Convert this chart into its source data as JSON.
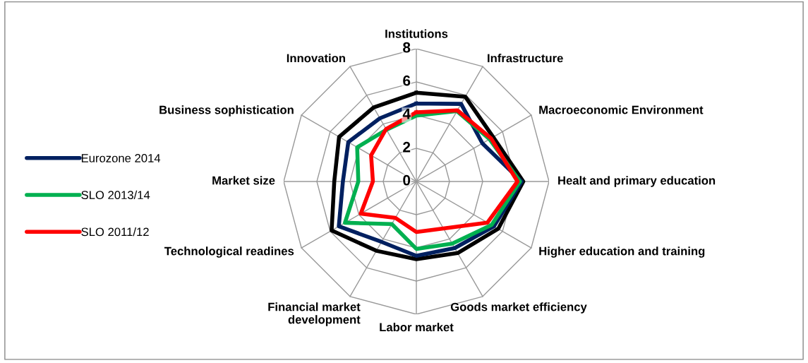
{
  "chart_data": {
    "type": "radar",
    "categories": [
      "Institutions",
      "Infrastructure",
      "Macroeconomic Environment",
      "Healt and primary education",
      "Higher education and training",
      "Goods market efficiency",
      "Labor market",
      "Financial market development",
      "Technological readines",
      "Market size",
      "Business sophistication",
      "Innovation"
    ],
    "series": [
      {
        "color": "#000000",
        "values": [
          5.35,
          5.9,
          5.35,
          6.45,
          5.7,
          4.98,
          4.68,
          4.82,
          5.9,
          4.95,
          5.38,
          5.15
        ]
      },
      {
        "name": "Eurozone 2014",
        "color": "#002060",
        "values": [
          4.7,
          5.4,
          4.6,
          6.35,
          5.4,
          4.63,
          4.48,
          4.2,
          5.4,
          4.43,
          4.74,
          4.4
        ]
      },
      {
        "name": "SLO 2013/14",
        "color": "#00b050",
        "values": [
          3.97,
          4.9,
          5.1,
          6.25,
          5.24,
          4.32,
          4.06,
          2.96,
          4.97,
          3.5,
          4.12,
          3.6
        ]
      },
      {
        "name": "SLO 2011/12",
        "color": "#ff0000",
        "values": [
          4.17,
          4.95,
          5.2,
          6.1,
          4.95,
          3.27,
          3.04,
          2.53,
          3.87,
          2.62,
          3.15,
          3.65
        ]
      }
    ],
    "ylim": [
      0,
      8
    ],
    "yticks": [
      0,
      2,
      4,
      6,
      8
    ],
    "grid": true,
    "legend": "left",
    "marker": "none",
    "line_style": "solid"
  }
}
